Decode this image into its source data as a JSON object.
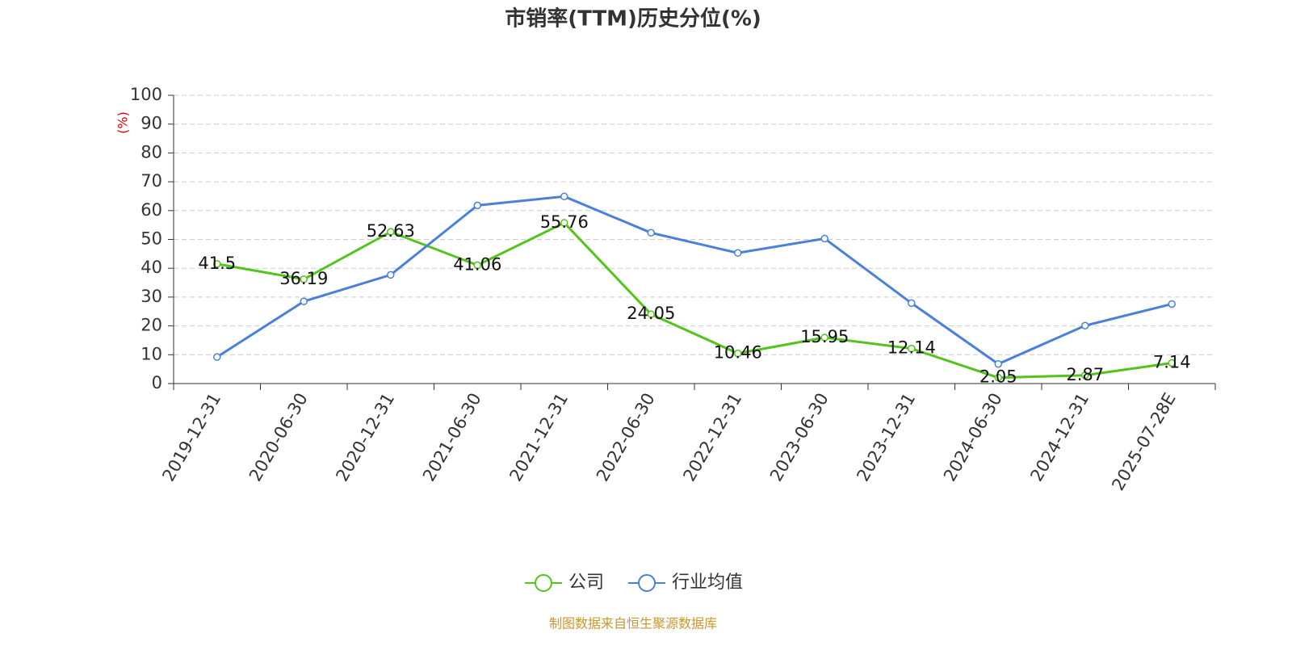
{
  "chart_data": {
    "type": "line",
    "title": "市销率(TTM)历史分位(%)",
    "y_label": "(%)",
    "source": "制图数据来自恒生聚源数据库",
    "categories": [
      "2019-12-31",
      "2020-06-30",
      "2020-12-31",
      "2021-06-30",
      "2021-12-31",
      "2022-06-30",
      "2022-12-31",
      "2023-06-30",
      "2023-12-31",
      "2024-06-30",
      "2024-12-31",
      "2025-07-28E"
    ],
    "series": [
      {
        "name": "公司",
        "color": "#52c41a",
        "values": [
          41.5,
          36.19,
          52.63,
          41.06,
          55.76,
          24.05,
          10.46,
          15.95,
          12.14,
          2.05,
          2.87,
          7.14
        ]
      },
      {
        "name": "行业均值",
        "color": "#4a7fdb",
        "values": [
          9.2,
          28.5,
          37.7,
          61.8,
          64.9,
          52.3,
          45.3,
          50.3,
          27.9,
          6.8,
          20.1,
          27.6
        ]
      }
    ],
    "ylim": [
      0,
      100
    ],
    "yticks": [
      0,
      10,
      20,
      30,
      40,
      50,
      60,
      70,
      80,
      90,
      100
    ],
    "grid": true,
    "legend": "bottom"
  }
}
